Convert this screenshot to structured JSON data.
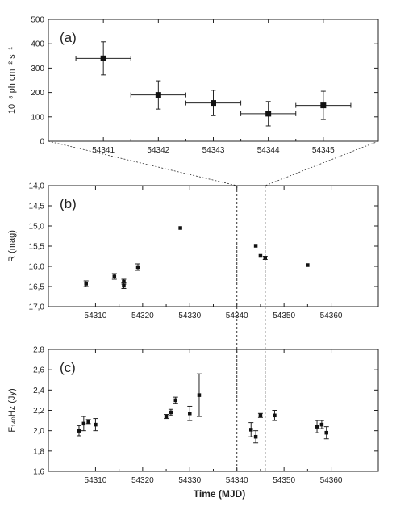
{
  "figure_labels": {
    "xlabel": "Time (MJD)"
  },
  "chart_data": [
    {
      "type": "scatter",
      "panel_label": "(a)",
      "ylabel": "10⁻⁸ ph cm⁻² s⁻¹",
      "xlim": [
        54340.0,
        54346.0
      ],
      "ylim": [
        0,
        500
      ],
      "x_ticks": [
        54341,
        54342,
        54343,
        54344,
        54345
      ],
      "y_ticks": [
        0,
        100,
        200,
        300,
        400,
        500
      ],
      "y_tick_labels": [
        "0",
        "100",
        "200",
        "300",
        "400",
        "500"
      ],
      "grid": false,
      "series": [
        {
          "x": [
            54341.0,
            54342.0,
            54343.0,
            54344.0,
            54345.0
          ],
          "y": [
            340,
            190,
            157,
            113,
            147
          ],
          "x_err": [
            0.5,
            0.5,
            0.5,
            0.5,
            0.5
          ],
          "y_err": [
            68,
            58,
            52,
            50,
            58
          ]
        }
      ]
    },
    {
      "type": "scatter",
      "panel_label": "(b)",
      "ylabel": "R (mag)",
      "xlim": [
        54300,
        54370
      ],
      "ylim": [
        17.0,
        14.0
      ],
      "y_inverted": true,
      "x_ticks": [
        54310,
        54320,
        54330,
        54340,
        54350,
        54360
      ],
      "y_ticks": [
        14.0,
        14.5,
        15.0,
        15.5,
        16.0,
        16.5,
        17.0
      ],
      "y_tick_labels": [
        "14,0",
        "14,5",
        "15,0",
        "15,5",
        "16,0",
        "16,5",
        "17,0"
      ],
      "grid": false,
      "series": [
        {
          "x": [
            54308,
            54314,
            54316,
            54316,
            54319,
            54328,
            54344,
            54345,
            54346,
            54355
          ],
          "y": [
            16.43,
            16.25,
            16.38,
            16.48,
            16.02,
            15.05,
            15.49,
            15.74,
            15.79,
            15.97
          ],
          "y_err": [
            0.07,
            0.07,
            0.06,
            0.07,
            0.08,
            0.0,
            0.0,
            0.0,
            0.04,
            0.0
          ]
        }
      ]
    },
    {
      "type": "scatter",
      "panel_label": "(c)",
      "ylabel": "F₁₄₀Hz (Jy)",
      "xlim": [
        54300,
        54370
      ],
      "ylim": [
        1.6,
        2.8
      ],
      "x_ticks": [
        54310,
        54320,
        54330,
        54340,
        54350,
        54360
      ],
      "y_ticks": [
        1.6,
        1.8,
        2.0,
        2.2,
        2.4,
        2.6,
        2.8
      ],
      "y_tick_labels": [
        "1,6",
        "1,8",
        "2,0",
        "2,2",
        "2,4",
        "2,6",
        "2,8"
      ],
      "grid": false,
      "series": [
        {
          "x": [
            54306.5,
            54307.5,
            54308.5,
            54310,
            54325,
            54326,
            54327,
            54330,
            54332,
            54343,
            54344,
            54345,
            54348,
            54357,
            54358,
            54359
          ],
          "y": [
            2.0,
            2.07,
            2.09,
            2.06,
            2.14,
            2.18,
            2.3,
            2.17,
            2.35,
            2.01,
            1.94,
            2.15,
            2.15,
            2.04,
            2.06,
            1.98
          ],
          "y_err": [
            0.05,
            0.07,
            0.02,
            0.06,
            0.02,
            0.03,
            0.03,
            0.07,
            0.21,
            0.07,
            0.06,
            0.02,
            0.05,
            0.06,
            0.04,
            0.06
          ]
        }
      ]
    }
  ],
  "zoom_window": {
    "x": [
      54340,
      54346
    ]
  }
}
